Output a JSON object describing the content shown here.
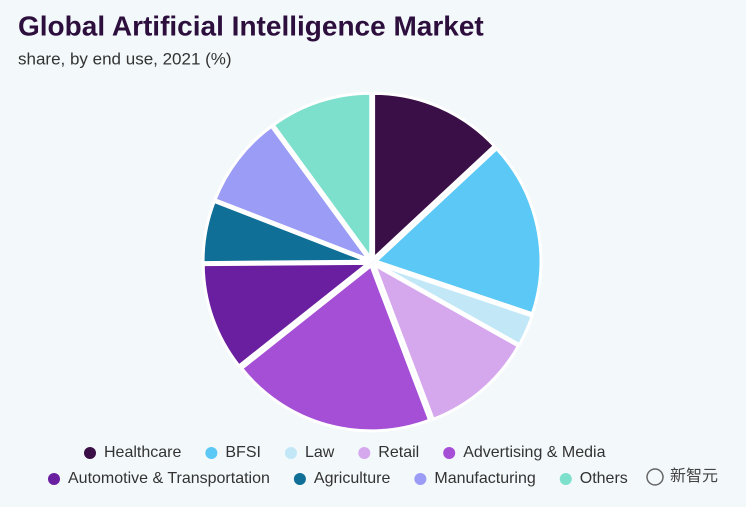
{
  "chart_data": {
    "type": "pie",
    "title": "Global Artificial Intelligence Market",
    "subtitle": "share, by end use, 2021 (%)",
    "categories": [
      "Healthcare",
      "BFSI",
      "Law",
      "Retail",
      "Advertising & Media",
      "Automotive & Transportation",
      "Agriculture",
      "Manufacturing",
      "Others"
    ],
    "values": [
      13,
      17,
      3,
      11,
      20,
      10.5,
      6,
      9,
      10
    ],
    "colors": [
      "#3a0f47",
      "#5bc8f5",
      "#c2e8f7",
      "#d5a8ee",
      "#a54fd6",
      "#6a1fa0",
      "#0f6f96",
      "#9b9cf5",
      "#7ce0cc"
    ],
    "watermark": "新智元"
  }
}
